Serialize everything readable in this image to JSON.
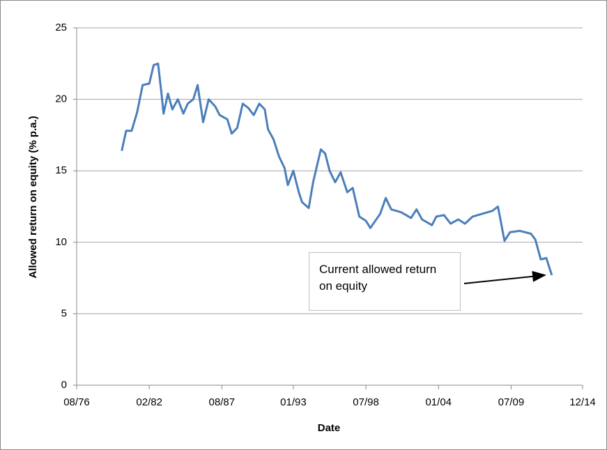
{
  "chart_data": {
    "type": "line",
    "y_label": "Allowed return on equity (% p.a.)",
    "x_label": "Date",
    "annotation": "Current allowed return on equity",
    "xlim": [
      "08/76",
      "12/14"
    ],
    "xticks": [
      "08/76",
      "02/82",
      "08/87",
      "01/93",
      "07/98",
      "01/04",
      "07/09",
      "12/14"
    ],
    "ylim": [
      0,
      25
    ],
    "yticks": [
      0,
      5,
      10,
      15,
      20,
      25
    ],
    "grid": true,
    "x": [
      "01/80",
      "05/80",
      "10/80",
      "03/81",
      "08/81",
      "02/82",
      "06/82",
      "10/82",
      "01/83",
      "03/83",
      "07/83",
      "11/83",
      "04/84",
      "09/84",
      "01/85",
      "06/85",
      "10/85",
      "03/86",
      "08/86",
      "02/87",
      "06/87",
      "01/88",
      "05/88",
      "10/88",
      "03/89",
      "08/89",
      "01/90",
      "06/90",
      "11/90",
      "02/91",
      "07/91",
      "12/91",
      "05/92",
      "08/92",
      "01/93",
      "06/93",
      "09/93",
      "03/94",
      "07/94",
      "02/95",
      "06/95",
      "10/95",
      "03/96",
      "08/96",
      "02/97",
      "07/97",
      "01/98",
      "07/98",
      "11/98",
      "08/99",
      "01/00",
      "06/00",
      "03/01",
      "12/01",
      "05/02",
      "10/02",
      "07/03",
      "11/03",
      "06/04",
      "12/04",
      "07/05",
      "01/06",
      "08/06",
      "05/07",
      "02/08",
      "07/08",
      "01/09",
      "06/09",
      "03/10",
      "01/11",
      "05/11",
      "10/11",
      "03/12",
      "08/12"
    ],
    "series": [
      {
        "name": "Allowed return on equity",
        "color": "#4a7ebb",
        "values": [
          16.4,
          17.8,
          17.8,
          19.1,
          21.0,
          21.1,
          22.4,
          22.5,
          20.5,
          19.0,
          20.4,
          19.3,
          20.0,
          19.0,
          19.7,
          20.0,
          21.0,
          18.4,
          20.0,
          19.5,
          18.9,
          18.6,
          17.6,
          18.0,
          19.7,
          19.4,
          18.9,
          19.7,
          19.3,
          17.9,
          17.2,
          16.0,
          15.2,
          14.0,
          15.0,
          13.5,
          12.8,
          12.4,
          14.2,
          16.5,
          16.2,
          15.0,
          14.2,
          14.9,
          13.5,
          13.8,
          11.8,
          11.5,
          11.0,
          12.0,
          13.1,
          12.3,
          12.1,
          11.7,
          12.3,
          11.6,
          11.2,
          11.8,
          11.9,
          11.3,
          11.6,
          11.3,
          11.8,
          12.0,
          12.2,
          12.5,
          10.1,
          10.7,
          10.8,
          10.6,
          10.2,
          8.8,
          8.9,
          7.7
        ]
      }
    ]
  }
}
